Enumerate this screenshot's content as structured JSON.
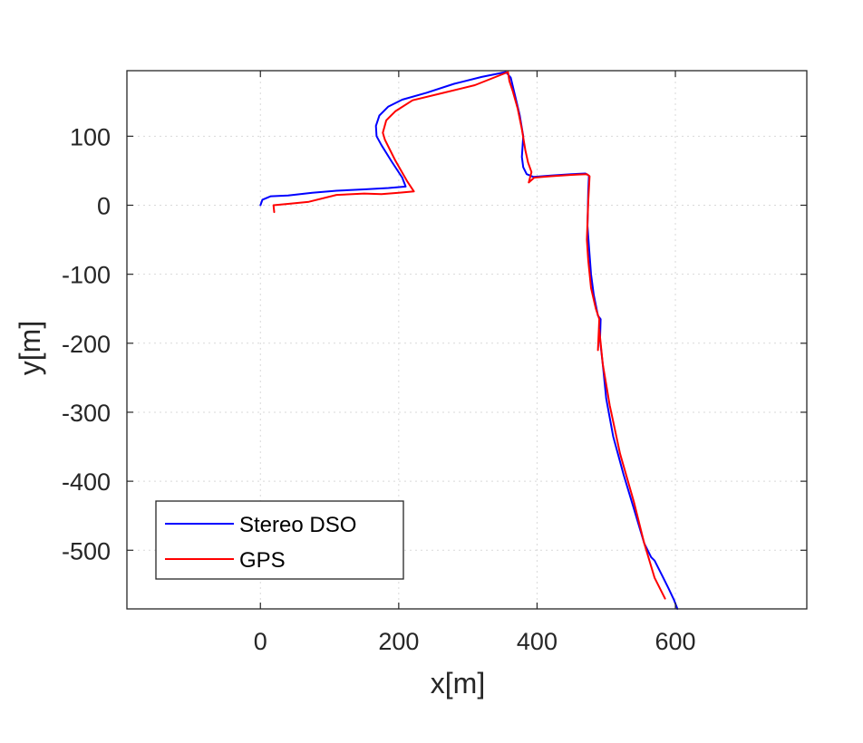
{
  "chart_data": {
    "type": "line",
    "xlabel": "x[m]",
    "ylabel": "y[m]",
    "xlim": [
      -193,
      790
    ],
    "ylim": [
      -585,
      195
    ],
    "xticks": [
      0,
      200,
      400,
      600
    ],
    "yticks": [
      100,
      0,
      -100,
      -200,
      -300,
      -400,
      -500
    ],
    "xtick_labels": [
      "0",
      "200",
      "400",
      "600"
    ],
    "ytick_labels": [
      "100",
      "0",
      "-100",
      "-200",
      "-300",
      "-400",
      "-500"
    ],
    "grid": true,
    "legend_position": "bottom-left",
    "series": [
      {
        "name": "Stereo DSO",
        "color": "#0000ff",
        "x": [
          0,
          3,
          15,
          40,
          75,
          110,
          150,
          185,
          210,
          205,
          190,
          175,
          168,
          167,
          172,
          185,
          205,
          240,
          280,
          320,
          355,
          362,
          368,
          375,
          380,
          378,
          380,
          385,
          395,
          420,
          450,
          470,
          475,
          474,
          473,
          475,
          478,
          482,
          488,
          492,
          491,
          495,
          500,
          510,
          525,
          540,
          555,
          565,
          570,
          580,
          590,
          598,
          603
        ],
        "y": [
          0,
          8,
          13,
          14,
          18,
          21,
          23,
          25,
          27,
          40,
          63,
          87,
          100,
          115,
          130,
          143,
          153,
          163,
          176,
          186,
          193,
          185,
          160,
          130,
          100,
          70,
          55,
          45,
          41,
          43,
          45,
          46,
          43,
          20,
          -30,
          -60,
          -100,
          -130,
          -160,
          -165,
          -195,
          -230,
          -280,
          -335,
          -390,
          -440,
          -490,
          -510,
          -515,
          -535,
          -555,
          -572,
          -585
        ]
      },
      {
        "name": "GPS",
        "color": "#ff0000",
        "x": [
          20,
          19,
          40,
          70,
          110,
          150,
          175,
          200,
          222,
          212,
          195,
          180,
          177,
          182,
          195,
          220,
          265,
          310,
          358,
          360,
          365,
          372,
          378,
          383,
          387,
          392,
          388,
          396,
          420,
          450,
          472,
          476,
          474,
          472,
          474,
          478,
          485,
          490,
          488,
          490,
          495,
          505,
          520,
          540,
          555,
          570,
          585
        ],
        "y": [
          -10,
          0,
          2,
          5,
          15,
          17,
          16,
          18,
          20,
          35,
          65,
          95,
          105,
          123,
          136,
          152,
          163,
          174,
          193,
          180,
          165,
          140,
          110,
          80,
          62,
          48,
          33,
          40,
          42,
          44,
          45,
          42,
          5,
          -50,
          -80,
          -120,
          -150,
          -165,
          -210,
          -180,
          -230,
          -290,
          -360,
          -430,
          -490,
          -540,
          -570
        ]
      }
    ]
  }
}
